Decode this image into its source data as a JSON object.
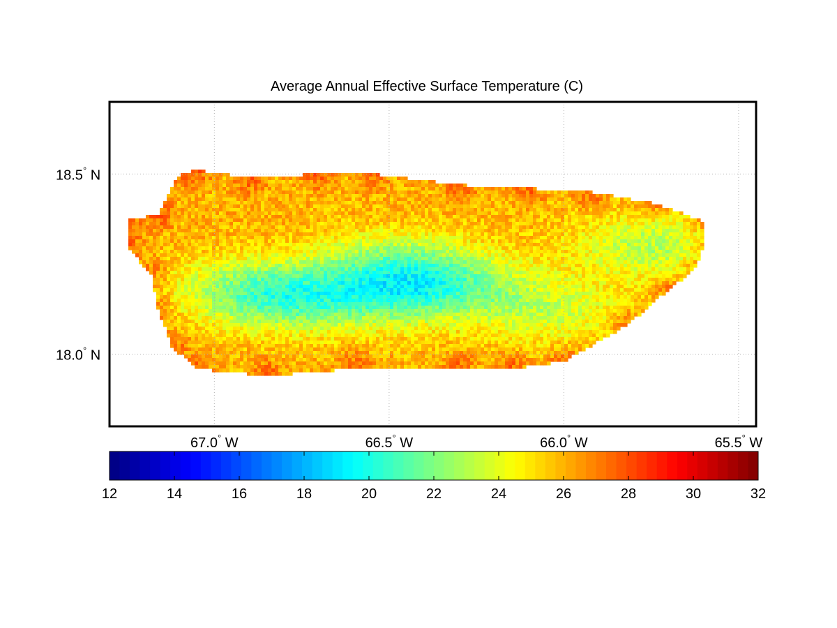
{
  "chart_data": {
    "type": "heatmap",
    "title": "Average Annual Effective Surface Temperature (C)",
    "map": {
      "lon_range": [
        -67.3,
        -65.45
      ],
      "lat_range": [
        17.8,
        18.7
      ],
      "lon_ticks": [
        {
          "value": -67.0,
          "label": "67.0",
          "hemi": "W"
        },
        {
          "value": -66.5,
          "label": "66.5",
          "hemi": "W"
        },
        {
          "value": -66.0,
          "label": "66.0",
          "hemi": "W"
        },
        {
          "value": -65.5,
          "label": "65.5",
          "hemi": "W"
        }
      ],
      "lat_ticks": [
        {
          "value": 18.5,
          "label": "18.5",
          "hemi": "N"
        },
        {
          "value": 18.0,
          "label": "18.0",
          "hemi": "N"
        }
      ],
      "degree_symbol": "°",
      "grid": true,
      "region_lon": [
        -67.25,
        -67.16,
        -67.1,
        -67.05,
        -66.9,
        -66.7,
        -66.55,
        -66.3,
        -66.1,
        -65.92,
        -65.75,
        -65.6,
        -65.6,
        -65.62,
        -65.7,
        -65.82,
        -66.0,
        -66.15,
        -66.3,
        -66.6,
        -66.85,
        -67.05,
        -67.12,
        -67.16,
        -67.18,
        -67.25
      ],
      "region_lat": [
        18.37,
        18.39,
        18.5,
        18.51,
        18.49,
        18.5,
        18.5,
        18.47,
        18.46,
        18.45,
        18.42,
        18.37,
        18.3,
        18.24,
        18.18,
        18.08,
        17.98,
        17.96,
        17.96,
        17.96,
        17.94,
        17.96,
        18.02,
        18.12,
        18.22,
        18.3
      ],
      "cool_centers": [
        {
          "lon": -66.5,
          "lat": 18.17,
          "value": 18.8
        },
        {
          "lon": -66.78,
          "lat": 18.15,
          "value": 20.3
        },
        {
          "lon": -66.9,
          "lat": 18.18,
          "value": 21.0
        },
        {
          "lon": -66.3,
          "lat": 18.2,
          "value": 21.0
        },
        {
          "lon": -66.05,
          "lat": 18.12,
          "value": 21.6
        },
        {
          "lon": -65.75,
          "lat": 18.3,
          "value": 20.6
        },
        {
          "lon": -66.5,
          "lat": 18.26,
          "value": 21.5
        }
      ],
      "base_value": 26.0
    },
    "colorbar": {
      "range": [
        12,
        32
      ],
      "ticks": [
        12,
        14,
        16,
        18,
        20,
        22,
        24,
        26,
        28,
        30,
        32
      ],
      "colormap": "jet",
      "levels": 64
    }
  }
}
